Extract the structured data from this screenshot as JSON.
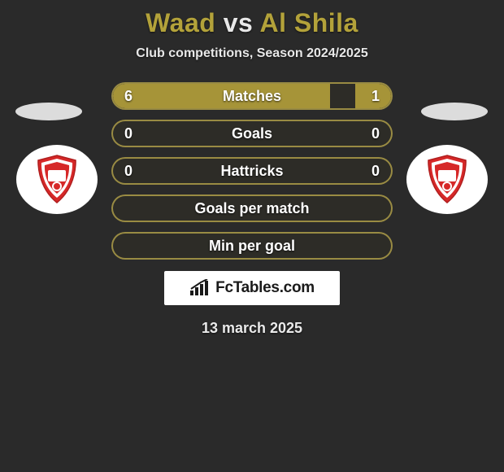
{
  "title": {
    "left": "Waad",
    "mid": "vs",
    "right": "Al Shila"
  },
  "subtitle": "Club competitions, Season 2024/2025",
  "rows": [
    {
      "label": "Matches",
      "left": "6",
      "right": "1",
      "left_pct": 78,
      "right_pct": 13
    },
    {
      "label": "Goals",
      "left": "0",
      "right": "0",
      "left_pct": 0,
      "right_pct": 0
    },
    {
      "label": "Hattricks",
      "left": "0",
      "right": "0",
      "left_pct": 0,
      "right_pct": 0
    },
    {
      "label": "Goals per match",
      "left": "",
      "right": "",
      "left_pct": 0,
      "right_pct": 0
    },
    {
      "label": "Min per goal",
      "left": "",
      "right": "",
      "left_pct": 0,
      "right_pct": 0
    }
  ],
  "branding_text": "FcTables.com",
  "date": "13 march 2025",
  "colors": {
    "bar_fill": "#a69438",
    "bar_border": "rgba(200,180,80,0.7)",
    "title_accent": "#b3a23a",
    "bg": "#2a2a2a",
    "shield_red": "#d62828",
    "shield_white": "#ffffff"
  }
}
